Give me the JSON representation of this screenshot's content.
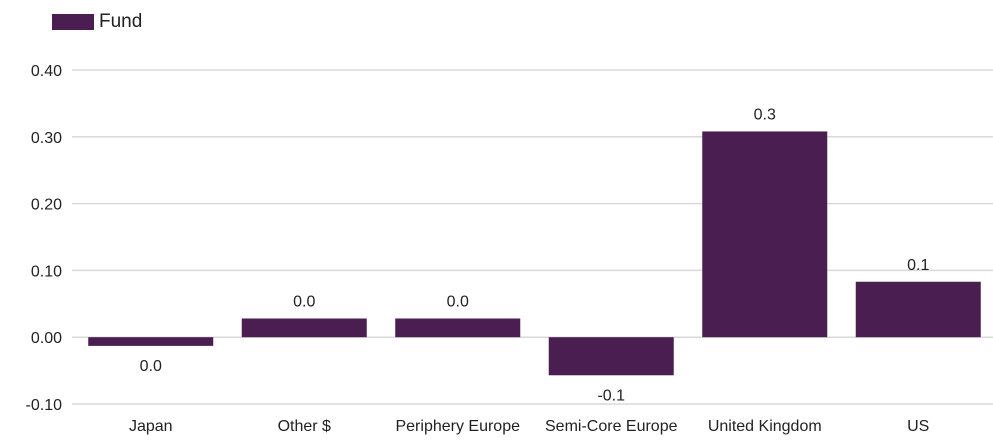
{
  "colors": {
    "bar": "#4b1e51",
    "grid": "#d9d9d9",
    "text": "#222222",
    "background": "#ffffff"
  },
  "legend": {
    "items": [
      {
        "label": "Fund",
        "color": "#4b1e51"
      }
    ],
    "placement": "top-left"
  },
  "chart_data": {
    "type": "bar",
    "title": "",
    "xlabel": "",
    "ylabel": "",
    "categories": [
      "Japan",
      "Other $",
      "Periphery Europe",
      "Semi-Core Europe",
      "United Kingdom",
      "US"
    ],
    "series": [
      {
        "name": "Fund",
        "values": [
          -0.013,
          0.028,
          0.028,
          -0.057,
          0.308,
          0.083
        ],
        "labels": [
          "0.0",
          "0.0",
          "0.0",
          "-0.1",
          "0.3",
          "0.1"
        ]
      }
    ],
    "ylim": [
      -0.1,
      0.4
    ],
    "yticks": [
      -0.1,
      0.0,
      0.1,
      0.2,
      0.3,
      0.4
    ],
    "ytick_labels": [
      "-0.10",
      "0.00",
      "0.10",
      "0.20",
      "0.30",
      "0.40"
    ],
    "grid": true,
    "legend_position": "top-left"
  }
}
